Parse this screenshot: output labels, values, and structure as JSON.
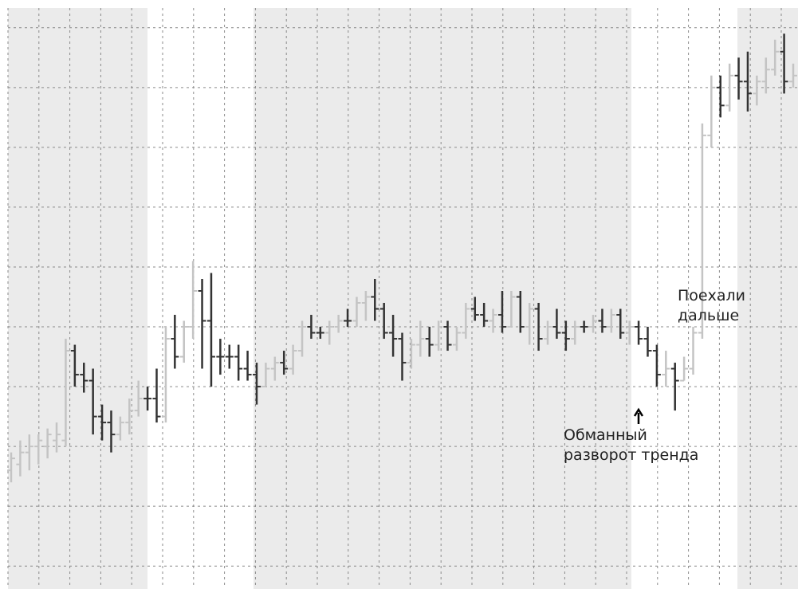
{
  "chart_data": {
    "type": "ohlc",
    "open": [
      16,
      17,
      19,
      20,
      20,
      21,
      21,
      36,
      32,
      31,
      25,
      24,
      22,
      24,
      26,
      28,
      28,
      25,
      38,
      35,
      40,
      46,
      41,
      35,
      35,
      35,
      33,
      32,
      30,
      33,
      34,
      33,
      36,
      40,
      39,
      39,
      40,
      41,
      41,
      44,
      45,
      43,
      39,
      38,
      34,
      37,
      38,
      37,
      40,
      37,
      39,
      43,
      42,
      41,
      42,
      40,
      45,
      40,
      43,
      38,
      40,
      39,
      38,
      40,
      40,
      41,
      40,
      42,
      39,
      40,
      38,
      36,
      32,
      33,
      31,
      33,
      39,
      72,
      80,
      77,
      82,
      81,
      79,
      81,
      83,
      86,
      81
    ],
    "high": [
      19,
      21,
      22,
      22,
      23,
      24,
      38,
      37,
      34,
      33,
      27,
      26,
      25,
      28,
      31,
      30,
      33,
      40,
      42,
      41,
      51,
      48,
      49,
      38,
      37,
      37,
      36,
      34,
      34,
      35,
      36,
      37,
      41,
      42,
      40,
      41,
      42,
      43,
      45,
      46,
      48,
      44,
      42,
      39,
      38,
      41,
      40,
      41,
      41,
      40,
      44,
      45,
      44,
      43,
      46,
      46,
      46,
      44,
      44,
      41,
      43,
      41,
      41,
      41,
      42,
      43,
      43,
      43,
      41,
      41,
      40,
      37,
      36,
      34,
      35,
      40,
      74,
      82,
      82,
      84,
      85,
      86,
      82,
      85,
      88,
      89,
      84
    ],
    "low": [
      14,
      15,
      16,
      17,
      18,
      19,
      20,
      30,
      29,
      22,
      21,
      19,
      21,
      22,
      25,
      26,
      24,
      24,
      33,
      34,
      38,
      33,
      30,
      32,
      33,
      31,
      31,
      27,
      30,
      31,
      32,
      32,
      35,
      38,
      38,
      37,
      39,
      40,
      40,
      41,
      41,
      38,
      35,
      31,
      33,
      35,
      35,
      36,
      36,
      36,
      38,
      41,
      40,
      39,
      39,
      40,
      39,
      37,
      36,
      37,
      38,
      36,
      37,
      39,
      39,
      39,
      39,
      38,
      37,
      37,
      35,
      30,
      30,
      26,
      31,
      32,
      38,
      70,
      75,
      76,
      78,
      76,
      77,
      79,
      82,
      79,
      80
    ],
    "close": [
      18,
      19,
      20,
      21,
      22,
      22,
      36,
      32,
      31,
      25,
      24,
      22,
      24,
      26,
      28,
      28,
      25,
      38,
      35,
      40,
      46,
      41,
      35,
      35,
      35,
      33,
      32,
      30,
      33,
      34,
      33,
      36,
      40,
      39,
      39,
      40,
      41,
      41,
      44,
      45,
      43,
      39,
      38,
      34,
      37,
      38,
      37,
      40,
      37,
      39,
      43,
      42,
      41,
      42,
      40,
      45,
      40,
      43,
      38,
      40,
      39,
      38,
      40,
      40,
      41,
      40,
      42,
      39,
      40,
      38,
      36,
      32,
      33,
      31,
      33,
      39,
      72,
      80,
      77,
      82,
      81,
      79,
      81,
      83,
      86,
      81,
      82
    ],
    "up_color": "#c4c4c4",
    "down_color": "#333333",
    "ylim": [
      -3.3,
      93.3
    ],
    "yticks": [
      0,
      10,
      20,
      30,
      40,
      50,
      60,
      70,
      80,
      90
    ],
    "grid": true,
    "annotations": [
      [
        "Поехали",
        "дальше"
      ],
      [
        "Обманный",
        "разворот тренда"
      ]
    ]
  }
}
